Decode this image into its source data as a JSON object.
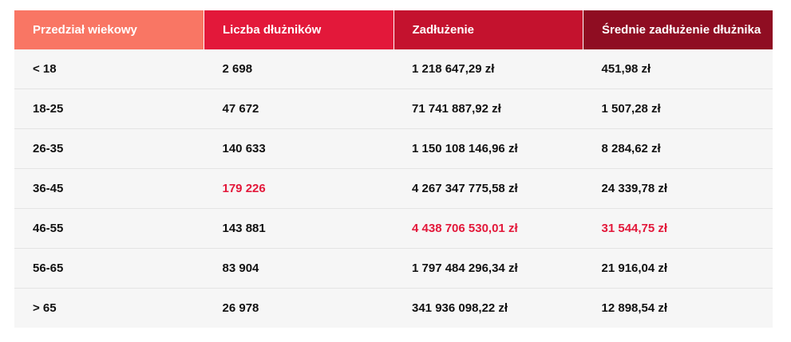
{
  "colors": {
    "header_1": "#f97664",
    "header_2": "#e3183a",
    "header_3": "#c4122e",
    "header_4": "#8f0d22",
    "highlight": "#e3183a",
    "row_bg": "#f6f6f6"
  },
  "table": {
    "headers": [
      "Przedział wiekowy",
      "Liczba dłużników",
      "Zadłużenie",
      "Średnie zadłużenie dłużnika"
    ],
    "rows": [
      [
        "< 18",
        "2 698",
        "1 218 647,29 zł",
        "451,98 zł"
      ],
      [
        "18-25",
        "47 672",
        "71 741 887,92 zł",
        "1 507,28 zł"
      ],
      [
        "26-35",
        "140 633",
        "1 150 108 146,96 zł",
        "8 284,62 zł"
      ],
      [
        "36-45",
        "179 226",
        "4 267 347 775,58 zł",
        "24 339,78 zł"
      ],
      [
        "46-55",
        "143 881",
        "4 438 706 530,01 zł",
        "31 544,75 zł"
      ],
      [
        "56-65",
        "83 904",
        "1 797 484 296,34 zł",
        "21 916,04 zł"
      ],
      [
        "> 65",
        "26 978",
        "341 936 098,22 zł",
        "12 898,54 zł"
      ]
    ]
  }
}
